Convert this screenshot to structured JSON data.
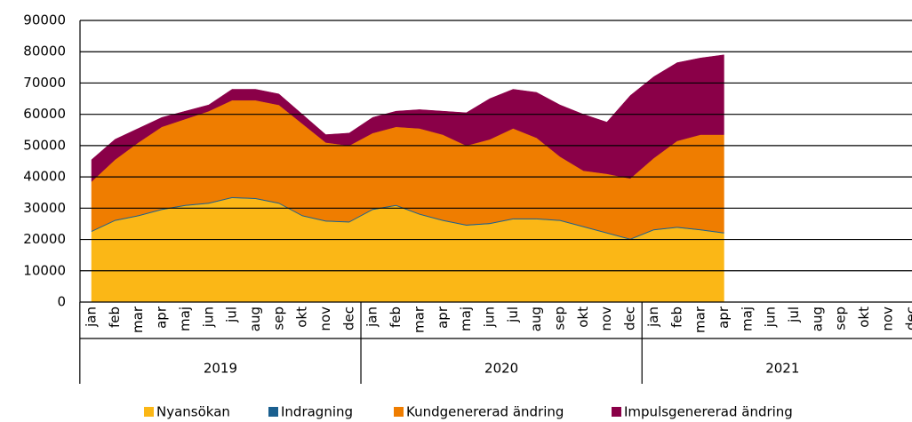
{
  "chart_data": {
    "type": "area",
    "categories": [
      "jan",
      "feb",
      "mar",
      "apr",
      "maj",
      "jun",
      "jul",
      "aug",
      "sep",
      "okt",
      "nov",
      "dec",
      "jan",
      "feb",
      "mar",
      "apr",
      "maj",
      "jun",
      "jul",
      "aug",
      "sep",
      "okt",
      "nov",
      "dec",
      "jan",
      "feb",
      "mar",
      "apr",
      "maj",
      "jun",
      "jul",
      "aug",
      "sep",
      "okt",
      "nov",
      "dec"
    ],
    "years": [
      "2019",
      "2020",
      "2021"
    ],
    "ylim": [
      0,
      90000
    ],
    "yticks": [
      0,
      10000,
      20000,
      30000,
      40000,
      50000,
      60000,
      70000,
      80000,
      90000
    ],
    "grid": true,
    "stacked": true,
    "legend": "bottom",
    "series": [
      {
        "name": "Nyansökan",
        "color": "#fbb716",
        "values": [
          22500,
          26000,
          27500,
          29500,
          30800,
          31500,
          33300,
          33000,
          31500,
          27500,
          25800,
          25500,
          29500,
          30800,
          28000,
          26000,
          24500,
          25000,
          26500,
          26500,
          26000,
          24000,
          22000,
          20000,
          23000,
          23800,
          23000,
          22000,
          null,
          null,
          null,
          null,
          null,
          null,
          null,
          null
        ]
      },
      {
        "name": "Indragning",
        "color": "#1a5f8f",
        "values": [
          300,
          300,
          300,
          300,
          300,
          300,
          300,
          300,
          300,
          300,
          300,
          300,
          300,
          300,
          300,
          300,
          300,
          300,
          300,
          300,
          300,
          300,
          300,
          300,
          300,
          300,
          300,
          300,
          null,
          null,
          null,
          null,
          null,
          null,
          null,
          null
        ]
      },
      {
        "name": "Kundgenererad ändring",
        "color": "#ef7d00",
        "values": [
          15700,
          19200,
          23200,
          26200,
          27400,
          29200,
          30900,
          31200,
          31200,
          29200,
          24900,
          24200,
          24200,
          24900,
          27200,
          27200,
          25200,
          26700,
          28700,
          25700,
          20200,
          17700,
          18700,
          19200,
          22700,
          27400,
          30200,
          31200,
          null,
          null,
          null,
          null,
          null,
          null,
          null,
          null
        ]
      },
      {
        "name": "Impulsgenererad ändring",
        "color": "#8a0048",
        "values": [
          7000,
          6500,
          4500,
          3000,
          2500,
          2000,
          3500,
          3500,
          3500,
          3000,
          2500,
          4000,
          5000,
          5000,
          6000,
          7500,
          10500,
          13000,
          12500,
          14500,
          16500,
          18000,
          16500,
          26500,
          26000,
          25000,
          24500,
          25500,
          null,
          null,
          null,
          null,
          null,
          null,
          null,
          null
        ]
      }
    ]
  }
}
